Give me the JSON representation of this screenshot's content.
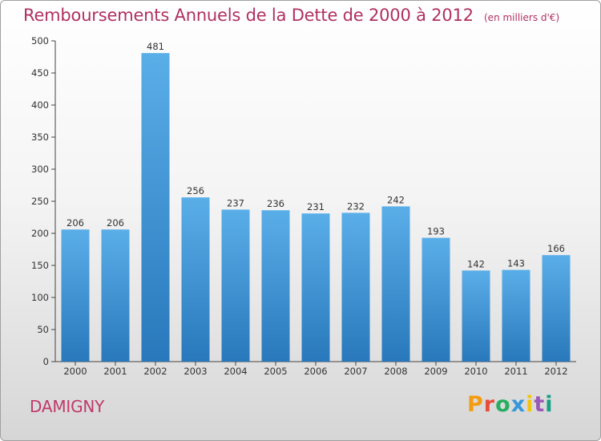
{
  "header": {
    "title": "Remboursements Annuels de la Dette de 2000 à 2012",
    "subtitle": "(en milliers d'€)"
  },
  "footer": {
    "city": "DAMIGNY",
    "brand": "Proxiti",
    "brand_colors": [
      "#f39c12",
      "#e74c3c",
      "#27ae60",
      "#3498db",
      "#f1c40f",
      "#9b59b6",
      "#16a085"
    ]
  },
  "colors": {
    "title": "#b03060",
    "bar_top": "#5aaee8",
    "bar_bottom": "#2878bb"
  },
  "chart_data": {
    "type": "bar",
    "title": "Remboursements Annuels de la Dette de 2000 à 2012",
    "subtitle": "(en milliers d'€)",
    "xlabel": "",
    "ylabel": "",
    "categories": [
      "2000",
      "2001",
      "2002",
      "2003",
      "2004",
      "2005",
      "2006",
      "2007",
      "2008",
      "2009",
      "2010",
      "2011",
      "2012"
    ],
    "values": [
      206,
      206,
      481,
      256,
      237,
      236,
      231,
      232,
      242,
      193,
      142,
      143,
      166
    ],
    "ylim": [
      0,
      500
    ],
    "yticks": [
      0,
      50,
      100,
      150,
      200,
      250,
      300,
      350,
      400,
      450,
      500
    ],
    "grid": false,
    "legend": "none"
  }
}
